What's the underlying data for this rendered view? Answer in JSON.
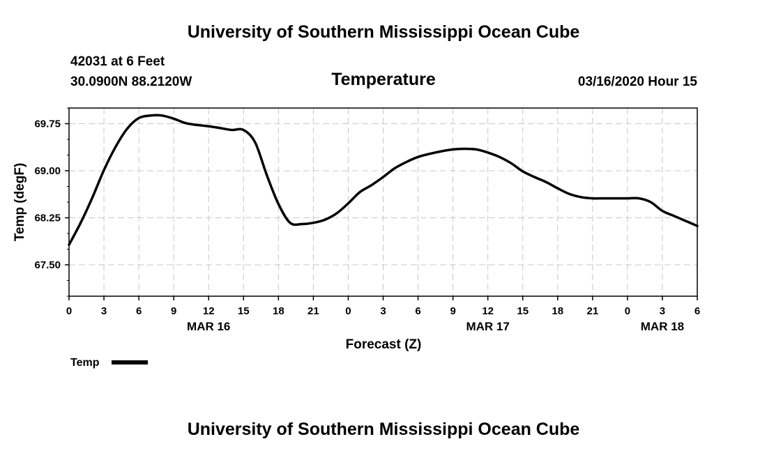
{
  "header": {
    "top_title": "University of Southern Mississippi Ocean Cube",
    "station_line": "42031 at 6 Feet",
    "coords_line": "30.0900N 88.2120W",
    "timestamp": "03/16/2020 Hour 15"
  },
  "footer": {
    "bottom_title": "University of Southern Mississippi Ocean Cube"
  },
  "legend": {
    "label": "Temp"
  },
  "colors": {
    "line": "#000000",
    "grid": "#c8c8c8"
  },
  "chart_data": {
    "type": "line",
    "title": "Temperature",
    "xlabel": "Forecast (Z)",
    "ylabel": "Temp (degF)",
    "ylim": [
      67.0,
      70.0
    ],
    "xlim": [
      0,
      54
    ],
    "grid": true,
    "legend_position": "bottom-left",
    "y_ticks": [
      67.5,
      68.25,
      69.0,
      69.75
    ],
    "y_tick_labels": [
      "67.50",
      "68.25",
      "69.00",
      "69.75"
    ],
    "x_ticks": [
      0,
      3,
      6,
      9,
      12,
      15,
      18,
      21,
      24,
      27,
      30,
      33,
      36,
      39,
      42,
      45,
      48,
      51,
      54
    ],
    "x_tick_labels": [
      "0",
      "3",
      "6",
      "9",
      "12",
      "15",
      "18",
      "21",
      "0",
      "3",
      "6",
      "9",
      "12",
      "15",
      "18",
      "21",
      "0",
      "3",
      "6"
    ],
    "date_labels": [
      {
        "x": 12,
        "label": "MAR 16"
      },
      {
        "x": 36,
        "label": "MAR 17"
      },
      {
        "x": 51,
        "label": "MAR 18"
      }
    ],
    "series": [
      {
        "name": "Temp",
        "x": [
          0,
          1,
          2,
          3,
          4,
          5,
          6,
          7,
          8,
          9,
          10,
          11,
          12,
          13,
          14,
          15,
          16,
          17,
          18,
          19,
          20,
          21,
          22,
          23,
          24,
          25,
          26,
          27,
          28,
          29,
          30,
          31,
          32,
          33,
          34,
          35,
          36,
          37,
          38,
          39,
          40,
          41,
          42,
          43,
          44,
          45,
          46,
          47,
          48,
          49,
          50,
          51,
          52,
          53,
          54
        ],
        "values": [
          67.82,
          68.17,
          68.57,
          69.01,
          69.38,
          69.67,
          69.84,
          69.88,
          69.88,
          69.83,
          69.76,
          69.73,
          69.71,
          69.68,
          69.65,
          69.65,
          69.45,
          68.93,
          68.47,
          68.17,
          68.15,
          68.17,
          68.22,
          68.32,
          68.48,
          68.66,
          68.77,
          68.9,
          69.04,
          69.14,
          69.22,
          69.27,
          69.31,
          69.34,
          69.35,
          69.34,
          69.29,
          69.22,
          69.12,
          68.99,
          68.9,
          68.82,
          68.72,
          68.63,
          68.58,
          68.56,
          68.56,
          68.56,
          68.56,
          68.56,
          68.5,
          68.36,
          68.28,
          68.2,
          68.12
        ]
      }
    ]
  }
}
